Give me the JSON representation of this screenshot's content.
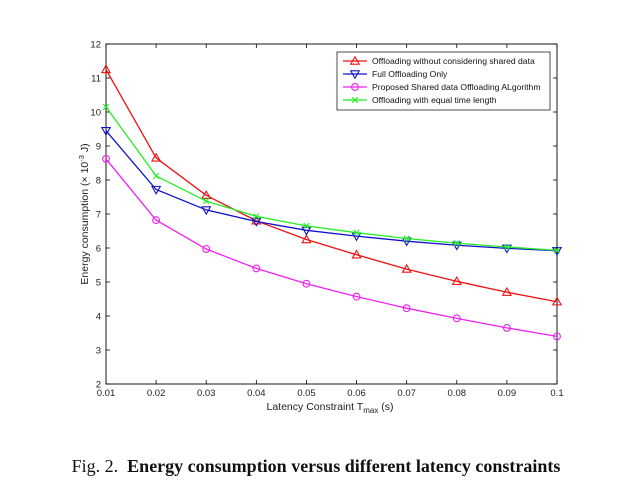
{
  "chart_data": {
    "type": "line",
    "xlabel": "Latency Constraint T",
    "xlabel_sub": "max",
    "xlabel_unit": " (s)",
    "ylabel": "Energy consumption (× 10",
    "ylabel_sup": "-3",
    "ylabel_unit": " J)",
    "xlim": [
      0.01,
      0.1
    ],
    "ylim": [
      2,
      12
    ],
    "x_ticks": [
      "0.01",
      "0.02",
      "0.03",
      "0.04",
      "0.05",
      "0.06",
      "0.07",
      "0.08",
      "0.09",
      "0.1"
    ],
    "y_ticks": [
      "2",
      "3",
      "4",
      "5",
      "6",
      "7",
      "8",
      "9",
      "10",
      "11",
      "12"
    ],
    "x": [
      0.01,
      0.02,
      0.03,
      0.04,
      0.05,
      0.06,
      0.07,
      0.08,
      0.09,
      0.1
    ],
    "grid": false,
    "legend_position": "top-right",
    "series": [
      {
        "name": "Offloading without considering shared data",
        "color": "#ee1111",
        "marker": "triangle-up",
        "values": [
          11.25,
          8.65,
          7.55,
          6.8,
          6.25,
          5.8,
          5.38,
          5.02,
          4.7,
          4.42
        ]
      },
      {
        "name": "Full Offloading Only",
        "color": "#1111cc",
        "marker": "triangle-down",
        "values": [
          9.45,
          7.72,
          7.12,
          6.78,
          6.52,
          6.35,
          6.2,
          6.08,
          5.99,
          5.92
        ]
      },
      {
        "name": "Proposed Shared data Offloading ALgorithm",
        "color": "#ee22ee",
        "marker": "circle",
        "values": [
          8.62,
          6.82,
          5.97,
          5.4,
          4.95,
          4.57,
          4.23,
          3.93,
          3.65,
          3.4
        ]
      },
      {
        "name": "Offloading with equal time length",
        "color": "#22ee22",
        "marker": "x",
        "values": [
          10.15,
          8.12,
          7.38,
          6.93,
          6.65,
          6.45,
          6.28,
          6.14,
          6.03,
          5.93
        ]
      }
    ]
  },
  "caption": {
    "label": "Fig. 2.",
    "text": "Energy consumption versus different latency constraints"
  }
}
